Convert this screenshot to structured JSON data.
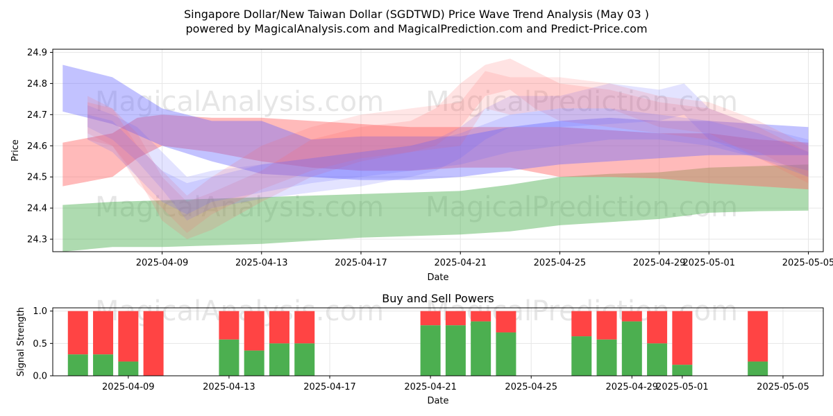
{
  "title_line1": "Singapore Dollar/New Taiwan Dollar (SGDTWD) Price Wave Trend Analysis (May 03 )",
  "title_line2": "powered by MagicalAnalysis.com and MagicalPrediction.com and Predict-Price.com",
  "watermarks": [
    "MagicalAnalysis.com",
    "MagicalPrediction.com"
  ],
  "colors": {
    "blue": "#6666ff",
    "red": "#ff6666",
    "green": "#4caf50",
    "buy": "#4caf50",
    "sell": "#ff4444"
  },
  "chart_data": [
    {
      "type": "area",
      "title": "",
      "xlabel": "Date",
      "ylabel": "Price",
      "ylim": [
        24.26,
        24.91
      ],
      "yticks": [
        24.3,
        24.4,
        24.5,
        24.6,
        24.7,
        24.8,
        24.9
      ],
      "xticks": [
        "2025-04-09",
        "2025-04-13",
        "2025-04-17",
        "2025-04-21",
        "2025-04-25",
        "2025-04-29",
        "2025-05-01",
        "2025-05-05"
      ],
      "xtick_days": [
        4,
        8,
        12,
        16,
        20,
        24,
        26,
        30
      ],
      "xlim_days": [
        -0.4,
        30.6
      ],
      "grid": true,
      "bands": [
        {
          "color": "green",
          "opacity": 0.45,
          "x": [
            0,
            2,
            4,
            6,
            8,
            10,
            12,
            14,
            16,
            18,
            20,
            22,
            24,
            26,
            28,
            30
          ],
          "lower": [
            24.26,
            24.275,
            24.275,
            24.28,
            24.285,
            24.295,
            24.305,
            24.31,
            24.315,
            24.325,
            24.345,
            24.355,
            24.365,
            24.385,
            24.39,
            24.392
          ],
          "upper": [
            24.41,
            24.42,
            24.425,
            24.43,
            24.435,
            24.44,
            24.445,
            24.45,
            24.455,
            24.475,
            24.5,
            24.51,
            24.515,
            24.53,
            24.535,
            24.54
          ]
        },
        {
          "color": "red",
          "opacity": 0.45,
          "x": [
            0,
            2,
            3,
            4,
            6,
            8,
            10,
            12,
            14,
            16,
            18,
            20,
            22,
            24,
            26,
            28,
            30
          ],
          "lower": [
            24.47,
            24.5,
            24.56,
            24.6,
            24.58,
            24.55,
            24.53,
            24.52,
            24.52,
            24.53,
            24.53,
            24.5,
            24.5,
            24.495,
            24.48,
            24.47,
            24.46
          ],
          "upper": [
            24.61,
            24.64,
            24.69,
            24.7,
            24.69,
            24.69,
            24.68,
            24.67,
            24.66,
            24.66,
            24.66,
            24.66,
            24.65,
            24.64,
            24.64,
            24.62,
            24.61
          ]
        },
        {
          "color": "blue",
          "opacity": 0.4,
          "x": [
            0,
            2,
            4,
            6,
            8,
            10,
            12,
            14,
            16,
            18,
            20,
            22,
            24,
            26,
            28,
            30
          ],
          "lower": [
            24.71,
            24.67,
            24.6,
            24.55,
            24.51,
            24.5,
            24.49,
            24.49,
            24.5,
            24.52,
            24.54,
            24.55,
            24.56,
            24.57,
            24.57,
            24.57
          ],
          "upper": [
            24.86,
            24.82,
            24.72,
            24.68,
            24.68,
            24.62,
            24.63,
            24.63,
            24.63,
            24.66,
            24.68,
            24.69,
            24.68,
            24.68,
            24.67,
            24.66
          ]
        },
        {
          "color": "red",
          "opacity": 0.18,
          "x": [
            1,
            2,
            3,
            4,
            5,
            6,
            8,
            10,
            12,
            14,
            15,
            16,
            17,
            18,
            19,
            20,
            22,
            24,
            26,
            28,
            30
          ],
          "lower": [
            24.62,
            24.6,
            24.5,
            24.36,
            24.3,
            24.33,
            24.42,
            24.5,
            24.55,
            24.58,
            24.6,
            24.66,
            24.76,
            24.78,
            24.72,
            24.68,
            24.66,
            24.64,
            24.62,
            24.58,
            24.5
          ],
          "upper": [
            24.74,
            24.72,
            24.64,
            24.5,
            24.42,
            24.45,
            24.52,
            24.62,
            24.66,
            24.68,
            24.72,
            24.8,
            24.86,
            24.88,
            24.84,
            24.8,
            24.78,
            24.74,
            24.72,
            24.66,
            24.58
          ]
        },
        {
          "color": "blue",
          "opacity": 0.18,
          "x": [
            1,
            2,
            3,
            4,
            5,
            6,
            8,
            10,
            12,
            14,
            15,
            16,
            17,
            18,
            19,
            20,
            22,
            24,
            25,
            26,
            28,
            30
          ],
          "lower": [
            24.66,
            24.62,
            24.55,
            24.46,
            24.36,
            24.4,
            24.43,
            24.45,
            24.47,
            24.5,
            24.52,
            24.56,
            24.62,
            24.66,
            24.66,
            24.66,
            24.67,
            24.68,
            24.7,
            24.62,
            24.56,
            24.52
          ],
          "upper": [
            24.73,
            24.7,
            24.66,
            24.58,
            24.5,
            24.52,
            24.54,
            24.56,
            24.58,
            24.6,
            24.62,
            24.66,
            24.72,
            24.76,
            24.76,
            24.76,
            24.8,
            24.78,
            24.8,
            24.72,
            24.66,
            24.62
          ]
        },
        {
          "color": "red",
          "opacity": 0.16,
          "x": [
            1,
            2,
            3,
            4,
            5,
            6,
            8,
            10,
            12,
            14,
            16,
            17,
            18,
            20,
            22,
            24,
            26,
            28,
            30
          ],
          "lower": [
            24.64,
            24.6,
            24.48,
            24.4,
            24.32,
            24.38,
            24.46,
            24.52,
            24.56,
            24.58,
            24.6,
            24.72,
            24.7,
            24.72,
            24.72,
            24.66,
            24.64,
            24.56,
            24.48
          ],
          "upper": [
            24.76,
            24.72,
            24.6,
            24.52,
            24.44,
            24.5,
            24.6,
            24.66,
            24.7,
            24.72,
            24.74,
            24.84,
            24.82,
            24.82,
            24.8,
            24.76,
            24.74,
            24.68,
            24.6
          ]
        },
        {
          "color": "blue",
          "opacity": 0.18,
          "x": [
            1,
            2,
            3,
            4,
            5,
            6,
            8,
            10,
            12,
            14,
            16,
            18,
            20,
            22,
            24,
            26,
            28,
            30
          ],
          "lower": [
            24.62,
            24.58,
            24.5,
            24.42,
            24.38,
            24.42,
            24.45,
            24.48,
            24.5,
            24.52,
            24.54,
            24.58,
            24.6,
            24.62,
            24.62,
            24.6,
            24.56,
            24.5
          ],
          "upper": [
            24.7,
            24.68,
            24.6,
            24.52,
            24.48,
            24.5,
            24.54,
            24.56,
            24.58,
            24.6,
            24.64,
            24.7,
            24.72,
            24.72,
            24.7,
            24.68,
            24.64,
            24.58
          ]
        }
      ]
    },
    {
      "type": "bar",
      "title": "Buy and Sell Powers",
      "xlabel": "Date",
      "ylabel": "Signal Strength",
      "ylim": [
        0,
        1.05
      ],
      "yticks": [
        0.0,
        0.5,
        1.0
      ],
      "xticks": [
        "2025-04-09",
        "2025-04-13",
        "2025-04-17",
        "2025-04-21",
        "2025-04-25",
        "2025-04-29",
        "2025-05-01",
        "2025-05-05"
      ],
      "xtick_days": [
        4,
        8,
        12,
        16,
        20,
        24,
        26,
        30
      ],
      "xlim_days": [
        1.0,
        31.6
      ],
      "days": [
        2,
        3,
        4,
        5,
        7,
        8,
        9,
        10,
        13,
        14,
        15,
        16,
        19,
        20,
        21,
        22,
        23,
        26,
        28,
        29,
        30
      ],
      "buy": [
        0.33,
        0.33,
        0.22,
        0.0,
        0.56,
        0.39,
        0.5,
        0.5,
        0.78,
        0.78,
        0.84,
        0.67,
        0.61,
        0.56,
        0.84,
        0.5,
        0.17,
        0.22
      ],
      "bar_days": [
        2,
        3,
        4,
        5,
        8,
        9,
        10,
        11,
        16,
        17,
        18,
        19,
        22,
        23,
        24,
        25,
        26,
        29
      ],
      "grid": true
    }
  ]
}
